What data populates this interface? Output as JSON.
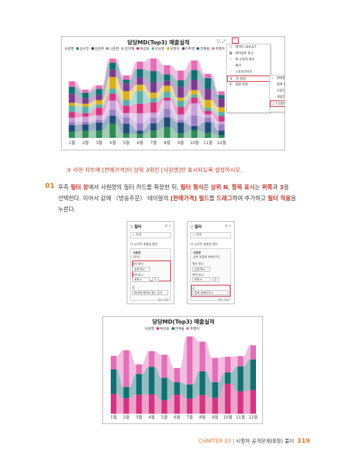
{
  "screenshot1": {
    "title": "담당MD(Top3) 매출실적",
    "legend_label": "사원명",
    "legend": [
      {
        "name": "김수진",
        "color": "#2e8b57"
      },
      {
        "name": "김현주",
        "color": "#1f4e79"
      },
      {
        "name": "나준환",
        "color": "#9b7fc4"
      },
      {
        "name": "민지혜",
        "color": "#c9a0d8"
      },
      {
        "name": "박성호",
        "color": "#d63384"
      },
      {
        "name": "유상훈",
        "color": "#5ab0a8"
      },
      {
        "name": "유영우",
        "color": "#d9b11f"
      },
      {
        "name": "이주영",
        "color": "#7a3b8f"
      },
      {
        "name": "전혜림",
        "color": "#136f74"
      },
      {
        "name": "주영아",
        "color": "#e36fb8"
      }
    ],
    "months": [
      "1월",
      "2월",
      "3월",
      "4월",
      "5월",
      "6월",
      "7월",
      "8월",
      "9월",
      "10월",
      "11월",
      "12월"
    ],
    "context_menu": [
      {
        "icon": "☐",
        "label": "데이터 내보내기"
      },
      {
        "icon": "▦",
        "label": "테이블로 표시"
      },
      {
        "icon": "☆",
        "label": "에 시작적 해석"
      },
      {
        "icon": "",
        "label": "제거"
      },
      {
        "icon": "♡",
        "label": "스포트라이트"
      },
      {
        "icon": "⇅",
        "label": "축 정렬"
      },
      {
        "icon": "⇵",
        "label": "정렬 방법"
      }
    ],
    "sort_menu": [
      {
        "icon": "✓",
        "label": "판매월"
      },
      {
        "icon": "",
        "label": "합계 판매가격"
      },
      {
        "icon": "",
        "label": "오름차순정"
      },
      {
        "icon": "",
        "label": "내림차순 정렬"
      },
      {
        "icon": "↓↑",
        "label": "오름차순 정렬"
      }
    ]
  },
  "caption": "③ 리본 차트에 [판매가격]이 상위 3위인 [사원명]만 표시되도록 설정하시오.",
  "step": {
    "number": "01",
    "lines": [
      [
        {
          "t": "우측 "
        },
        {
          "t": "필터 창",
          "em": true
        },
        {
          "t": "에서 사원명의 필터 카드를 확장한 뒤, "
        },
        {
          "t": "필터 형식",
          "em": true
        },
        {
          "t": "은 "
        },
        {
          "t": "상위 N",
          "em": true
        },
        {
          "t": ", "
        },
        {
          "t": "항목 표시",
          "em": true
        },
        {
          "t": "는 "
        },
        {
          "t": "위쪽",
          "em": true
        },
        {
          "t": "과 "
        },
        {
          "t": "3",
          "em": true
        },
        {
          "t": "을"
        }
      ],
      [
        {
          "t": "선택한다. 이어서 값에 〈방송주문〉 테이블의 "
        },
        {
          "t": "[판매가격] 필드",
          "em": true
        },
        {
          "t": "를 "
        },
        {
          "t": "드래그",
          "em": true
        },
        {
          "t": "하여 추가하고 "
        },
        {
          "t": "필터 적용",
          "em": true
        },
        {
          "t": "을"
        }
      ],
      [
        {
          "t": "누른다."
        }
      ]
    ]
  },
  "pane1": {
    "header": "필터",
    "search": "검색",
    "section": "이 시각적 개체의 필터",
    "card_title": "사원명",
    "card_sub": "(모두)",
    "filter_type_label": "필터 형식",
    "filter_type_value": "상위 N",
    "show_items_label": "항목 표시",
    "show_items_dir": "위쪽",
    "show_items_n": "3",
    "value_label": "값",
    "value_placeholder": "여기에 데이터 필드 추가",
    "apply": "필터 적용"
  },
  "pane2": {
    "header": "필터",
    "search": "검색",
    "section": "이 시각적 개체의 필터",
    "card_title": "사원명",
    "card_sub": "상위 3(합계 판매가격)...",
    "filter_type_label": "필터 형식",
    "filter_type_value": "상위 N",
    "show_items_label": "항목 표시",
    "show_items_dir": "위쪽",
    "show_items_n": "3",
    "value_label": "값",
    "value_field": "합계 판매가격",
    "apply": "필터 적용"
  },
  "screenshot2": {
    "title": "담당MD(Top3) 매출실적",
    "legend_label": "사원명",
    "legend": [
      {
        "name": "박성호",
        "color": "#d63384"
      },
      {
        "name": "전혜림",
        "color": "#136f74"
      },
      {
        "name": "주영아",
        "color": "#e36fb8"
      }
    ],
    "months": [
      "1월",
      "2월",
      "3월",
      "4월",
      "5월",
      "6월",
      "7월",
      "8월",
      "9월",
      "10월",
      "11월",
      "12월"
    ]
  },
  "footer": {
    "chapter": "CHAPTER 03",
    "title": "시행처 공개문제(B형) 풀이",
    "page": "319"
  }
}
